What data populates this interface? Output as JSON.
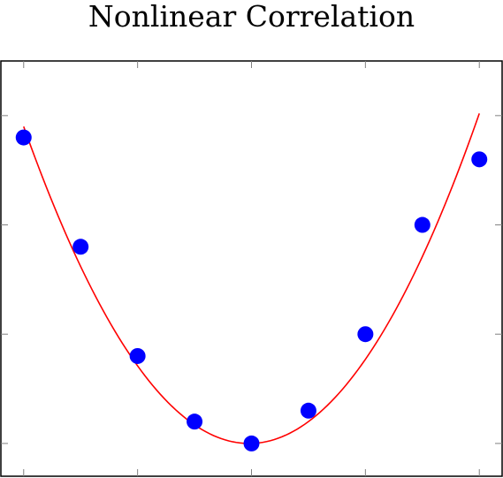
{
  "chart_data": {
    "type": "scatter",
    "title": "Nonlinear Correlation",
    "xlabel": "",
    "ylabel": "",
    "xlim": [
      -2.2,
      2.2
    ],
    "ylim": [
      -0.3,
      3.5
    ],
    "x_ticks": [
      -2,
      -1,
      0,
      1,
      2
    ],
    "y_ticks": [
      0,
      1,
      2,
      3
    ],
    "grid": false,
    "legend": "none",
    "series": [
      {
        "type": "scatter",
        "x": [
          -2,
          -1.5,
          -1,
          -0.5,
          0,
          0.5,
          1,
          1.5,
          2
        ],
        "y": [
          2.8,
          1.8,
          0.8,
          0.2,
          0,
          0.3,
          1,
          2,
          2.6
        ],
        "color": "#0000ff"
      },
      {
        "type": "line",
        "x_range": [
          -2,
          2
        ],
        "fit_coefficients": [
          0,
          0.03,
          0.74
        ],
        "color": "#ff0000"
      }
    ]
  }
}
